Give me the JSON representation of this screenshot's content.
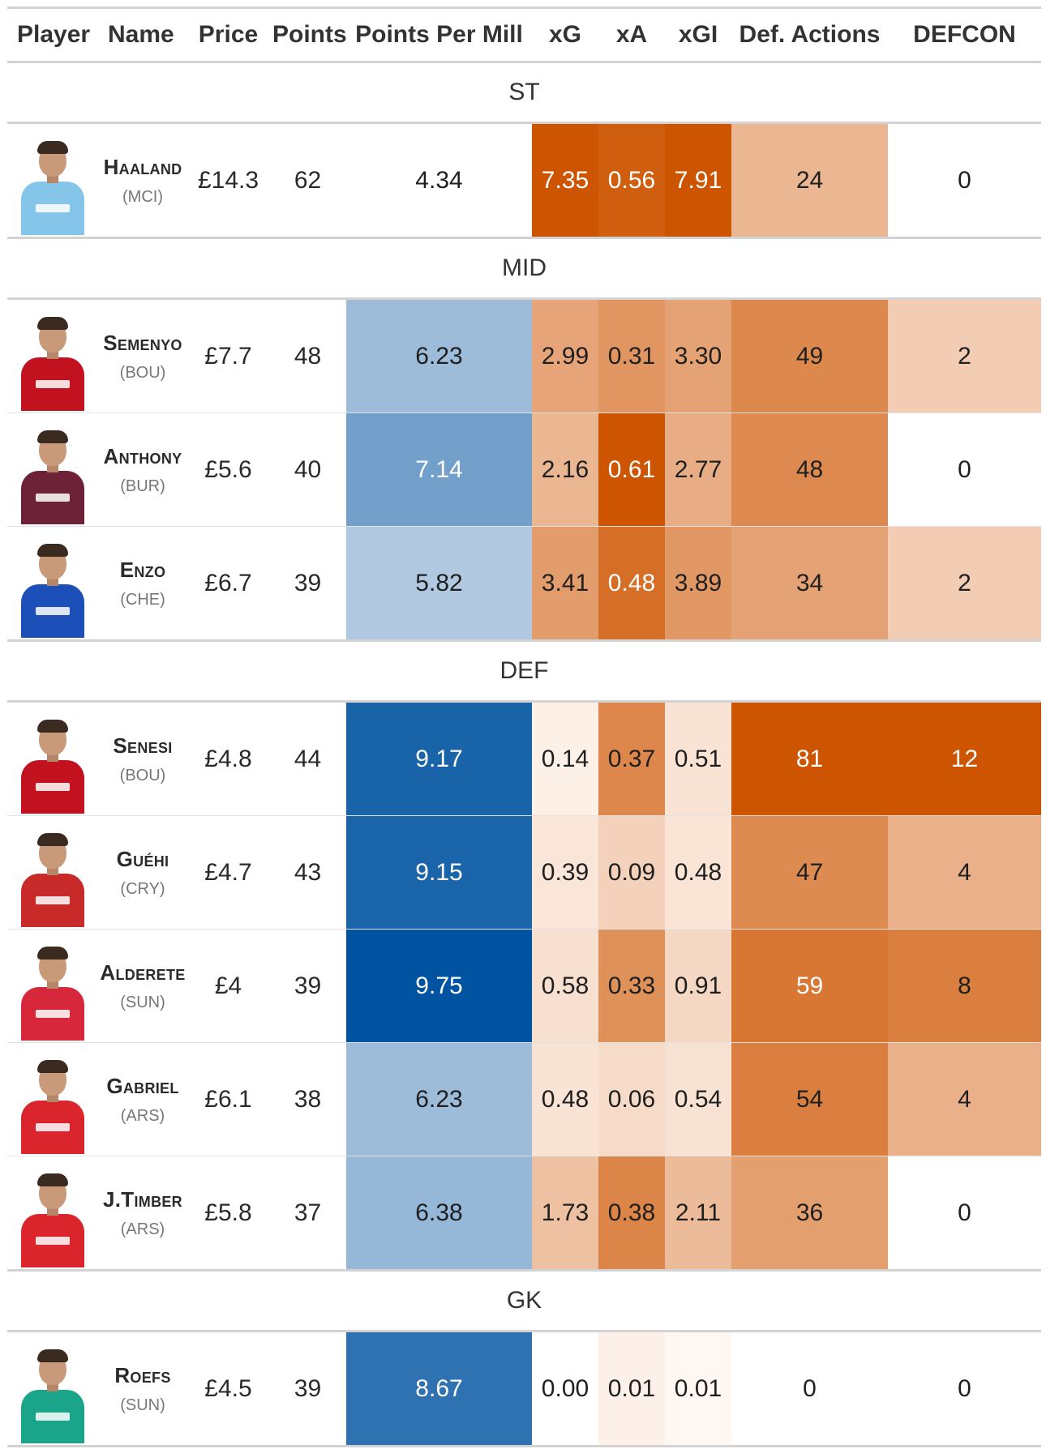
{
  "headers": {
    "player": "Player",
    "name": "Name",
    "price": "Price",
    "points": "Points",
    "ppm": "Points Per Mill",
    "xg": "xG",
    "xa": "xA",
    "xgi": "xGI",
    "def_actions": "Def. Actions",
    "defcon": "DEFCON"
  },
  "groups": [
    {
      "label": "ST",
      "players": [
        {
          "name": "Haaland",
          "team": "(MCI)",
          "price": "£14.3",
          "points": "62",
          "ppm": "4.34",
          "xg": "7.35",
          "xa": "0.56",
          "xgi": "7.91",
          "def_actions": "24",
          "defcon": "0"
        }
      ]
    },
    {
      "label": "MID",
      "players": [
        {
          "name": "Semenyo",
          "team": "(BOU)",
          "price": "£7.7",
          "points": "48",
          "ppm": "6.23",
          "xg": "2.99",
          "xa": "0.31",
          "xgi": "3.30",
          "def_actions": "49",
          "defcon": "2"
        },
        {
          "name": "Anthony",
          "team": "(BUR)",
          "price": "£5.6",
          "points": "40",
          "ppm": "7.14",
          "xg": "2.16",
          "xa": "0.61",
          "xgi": "2.77",
          "def_actions": "48",
          "defcon": "0"
        },
        {
          "name": "Enzo",
          "team": "(CHE)",
          "price": "£6.7",
          "points": "39",
          "ppm": "5.82",
          "xg": "3.41",
          "xa": "0.48",
          "xgi": "3.89",
          "def_actions": "34",
          "defcon": "2"
        }
      ]
    },
    {
      "label": "DEF",
      "players": [
        {
          "name": "Senesi",
          "team": "(BOU)",
          "price": "£4.8",
          "points": "44",
          "ppm": "9.17",
          "xg": "0.14",
          "xa": "0.37",
          "xgi": "0.51",
          "def_actions": "81",
          "defcon": "12"
        },
        {
          "name": "Guéhi",
          "team": "(CRY)",
          "price": "£4.7",
          "points": "43",
          "ppm": "9.15",
          "xg": "0.39",
          "xa": "0.09",
          "xgi": "0.48",
          "def_actions": "47",
          "defcon": "4"
        },
        {
          "name": "Alderete",
          "team": "(SUN)",
          "price": "£4",
          "points": "39",
          "ppm": "9.75",
          "xg": "0.58",
          "xa": "0.33",
          "xgi": "0.91",
          "def_actions": "59",
          "defcon": "8"
        },
        {
          "name": "Gabriel",
          "team": "(ARS)",
          "price": "£6.1",
          "points": "38",
          "ppm": "6.23",
          "xg": "0.48",
          "xa": "0.06",
          "xgi": "0.54",
          "def_actions": "54",
          "defcon": "4"
        },
        {
          "name": "J.Timber",
          "team": "(ARS)",
          "price": "£5.8",
          "points": "37",
          "ppm": "6.38",
          "xg": "1.73",
          "xa": "0.38",
          "xgi": "2.11",
          "def_actions": "36",
          "defcon": "0"
        }
      ]
    },
    {
      "label": "GK",
      "players": [
        {
          "name": "Roefs",
          "team": "(SUN)",
          "price": "£4.5",
          "points": "39",
          "ppm": "8.67",
          "xg": "0.00",
          "xa": "0.01",
          "xgi": "0.01",
          "def_actions": "0",
          "defcon": "0"
        }
      ]
    }
  ]
}
